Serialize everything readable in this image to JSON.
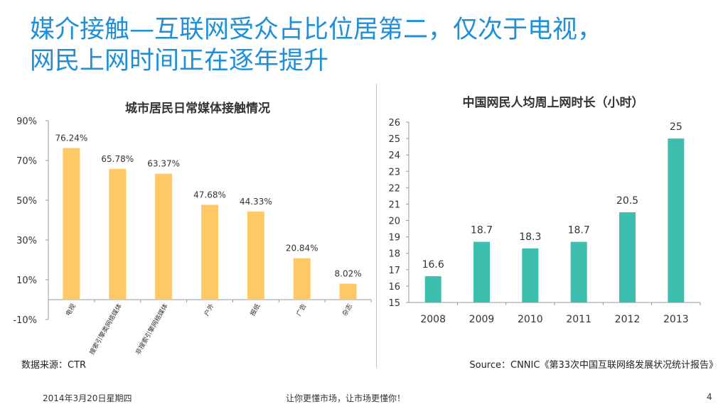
{
  "slide": {
    "title_line1": "媒介接触—互联网受众占比位居第二，仅次于电视，",
    "title_line2": "网民上网时间正在逐年提升",
    "source_left": "数据来源：CTR",
    "source_right": "Source：CNNIC《第33次中国互联网络发展状况统计报告》",
    "footer_date": "2014年3月20日星期四",
    "footer_slogan": "让你更懂市场，让市场更懂你！",
    "footer_page": "4"
  },
  "chart_data": [
    {
      "type": "bar",
      "title": "城市居民日常媒体接触情况",
      "categories": [
        "电视",
        "搜索引擎类网络媒体",
        "非搜索引擎网络媒体",
        "户外",
        "报纸",
        "广告",
        "杂志"
      ],
      "values": [
        76.24,
        65.78,
        63.37,
        47.68,
        44.33,
        20.84,
        8.02
      ],
      "data_labels": [
        "76.24%",
        "65.78%",
        "63.37%",
        "47.68%",
        "44.33%",
        "20.84%",
        "8.02%"
      ],
      "yticks": [
        "90%",
        "70%",
        "50%",
        "30%",
        "10%",
        "-10%"
      ],
      "ylim": [
        -10,
        90
      ],
      "color": "#ffc965",
      "grid": false
    },
    {
      "type": "bar",
      "title": "中国网民人均周上网时长（小时）",
      "categories": [
        "2008",
        "2009",
        "2010",
        "2011",
        "2012",
        "2013"
      ],
      "values": [
        16.6,
        18.7,
        18.3,
        18.7,
        20.5,
        25
      ],
      "data_labels": [
        "16.6",
        "18.7",
        "18.3",
        "18.7",
        "20.5",
        "25"
      ],
      "yticks": [
        "15",
        "16",
        "17",
        "18",
        "19",
        "20",
        "21",
        "22",
        "23",
        "24",
        "25",
        "26"
      ],
      "ylim": [
        15,
        26
      ],
      "color": "#3dbfb0",
      "grid": false
    }
  ]
}
